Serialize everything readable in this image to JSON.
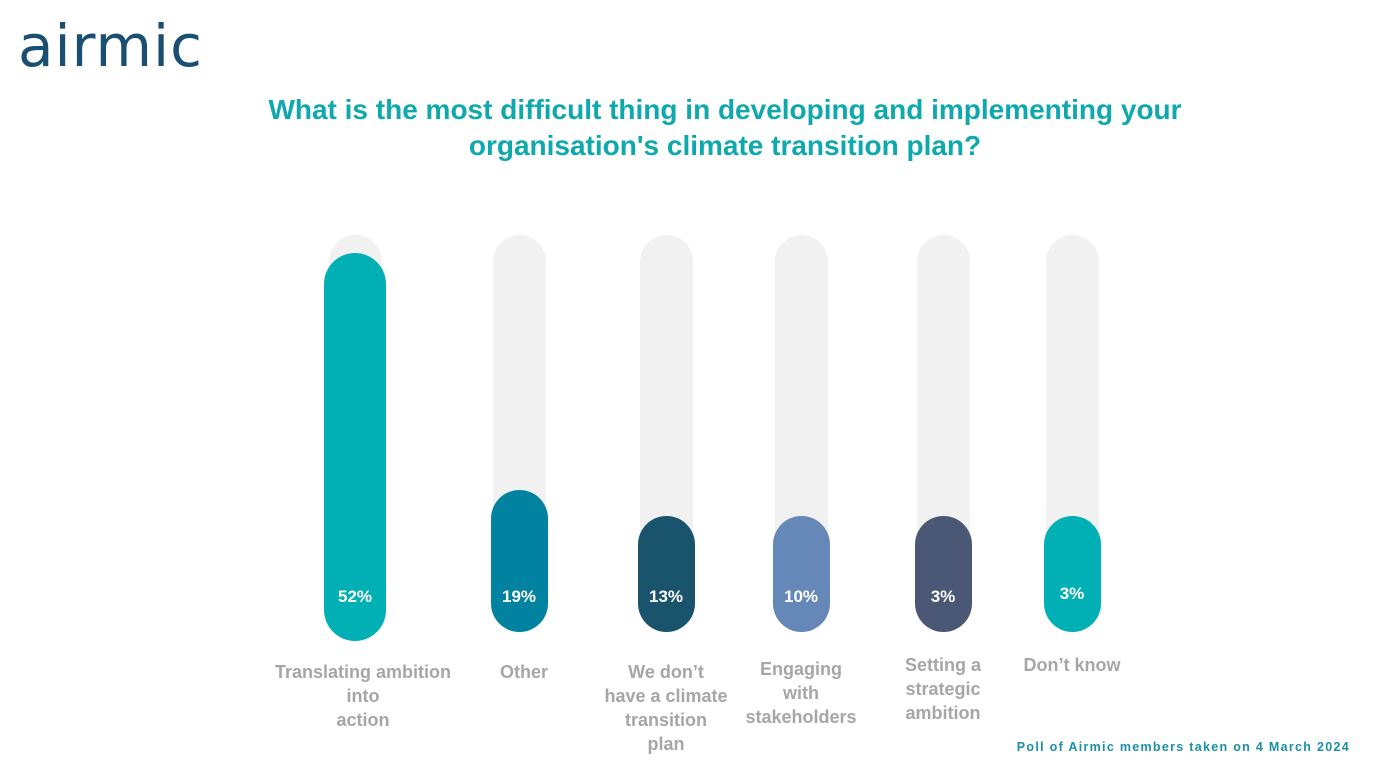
{
  "brand": {
    "logo_text": "airmic"
  },
  "chart_data": {
    "type": "bar",
    "title": "What is the most difficult thing in developing and implementing your organisation's climate transition plan?",
    "title_lines": [
      "What is the most difficult thing in developing and implementing your",
      "organisation's climate transition plan?"
    ],
    "categories": [
      "Translating ambition\ninto\naction",
      "Other",
      "We don’t\nhave a climate\ntransition\nplan",
      "Engaging\nwith\nstakeholders",
      "Setting a\nstrategic\nambition",
      "Don’t know"
    ],
    "values": [
      52,
      19,
      13,
      10,
      3,
      3
    ],
    "value_labels": [
      "52%",
      "19%",
      "13%",
      "10%",
      "3%",
      "3%"
    ],
    "colors": [
      "#00b0b4",
      "#0082a0",
      "#1a536c",
      "#6688b8",
      "#4a5876",
      "#00b0b4"
    ],
    "track_color": "#f1f1f1",
    "ylim": [
      0,
      100
    ],
    "xlabel": "",
    "ylabel": "",
    "grid": false,
    "legend": "none"
  },
  "footer": {
    "note": "Poll of Airmic members taken on 4 March 2024"
  }
}
